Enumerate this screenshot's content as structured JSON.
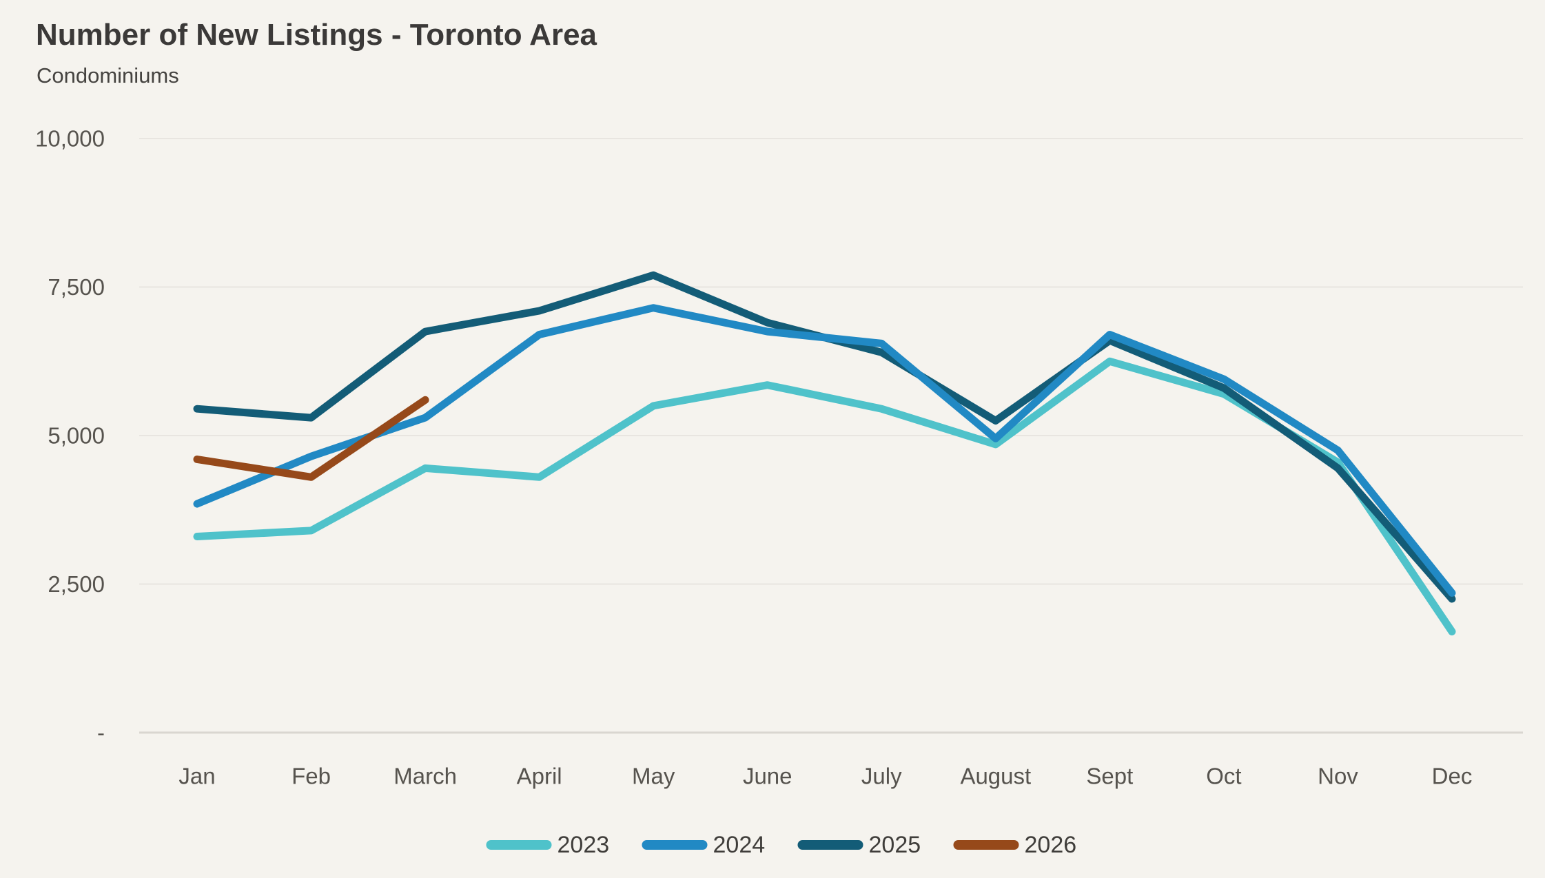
{
  "header": {
    "title": "Number of New Listings - Toronto Area",
    "subtitle": "Condominiums"
  },
  "chart_data": {
    "type": "line",
    "title": "Number of New Listings - Toronto Area",
    "subtitle": "Condominiums",
    "categories": [
      "Jan",
      "Feb",
      "March",
      "April",
      "May",
      "June",
      "July",
      "August",
      "Sept",
      "Oct",
      "Nov",
      "Dec"
    ],
    "series": [
      {
        "name": "2023",
        "color": "#4FC2CA",
        "values": [
          3300,
          3400,
          4450,
          4300,
          5500,
          5850,
          5450,
          4850,
          6250,
          5700,
          4550,
          1700
        ]
      },
      {
        "name": "2024",
        "color": "#2189C4",
        "values": [
          3850,
          4650,
          5300,
          6700,
          7150,
          6750,
          6550,
          4950,
          6700,
          5950,
          4750,
          2350
        ]
      },
      {
        "name": "2025",
        "color": "#135C77",
        "values": [
          5450,
          5300,
          6750,
          7100,
          7700,
          6900,
          6400,
          5250,
          6600,
          5800,
          4450,
          2250
        ]
      },
      {
        "name": "2026",
        "color": "#96491A",
        "values": [
          4600,
          4300,
          5600
        ]
      }
    ],
    "y_axis": {
      "min": 0,
      "max": 10000,
      "tick_interval": 2500,
      "tick_values": [
        0,
        2500,
        5000,
        7500,
        10000
      ],
      "tick_labels": [
        "-",
        "2,500",
        "5,000",
        "7,500",
        "10,000"
      ]
    },
    "x_axis": {
      "label": ""
    },
    "grid": true,
    "legend_position": "bottom",
    "legend_items": [
      "2023",
      "2024",
      "2025",
      "2026"
    ]
  },
  "colors": {
    "background": "#F5F3EE",
    "gridline": "#E8E5E0",
    "axis_line": "#D9D6D0",
    "title_text": "#3B3938",
    "subtitle_text": "#454340",
    "tick_text": "#56534E",
    "legend_text": "#3F3D3A"
  }
}
